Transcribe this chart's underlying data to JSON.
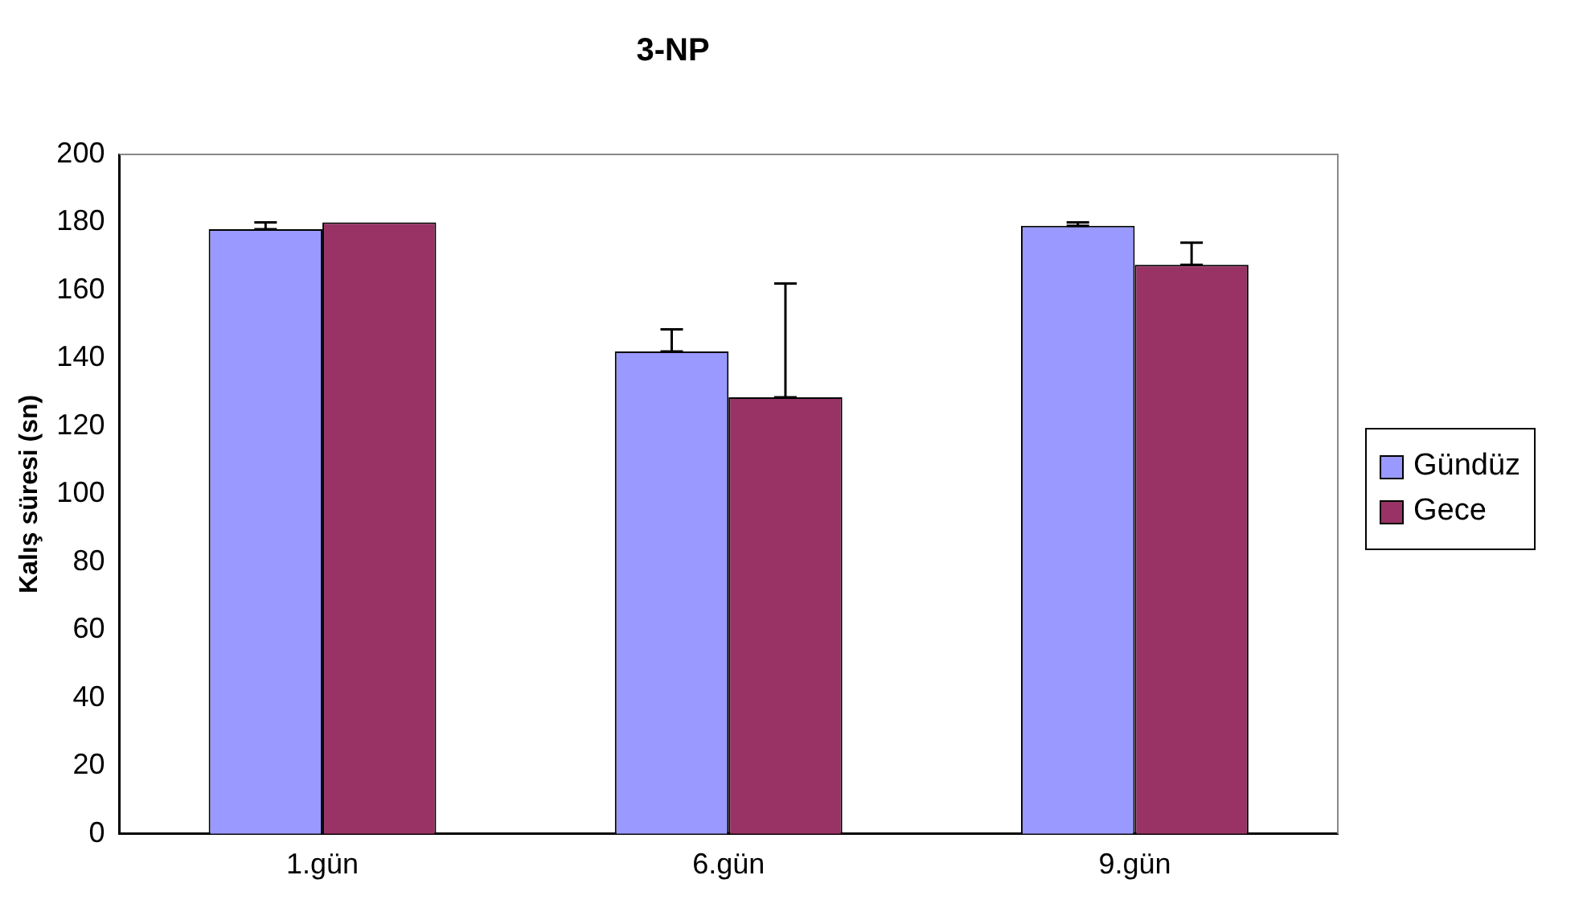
{
  "chart_data": {
    "type": "bar",
    "title": "3-NP",
    "ylabel": "Kalış süresi (sn)",
    "categories": [
      "1.gün",
      "6.gün",
      "9.gün"
    ],
    "series": [
      {
        "name": "Gündüz",
        "color": "#9999ff",
        "values": [
          178,
          142,
          179
        ],
        "errors": [
          [
            178,
            180
          ],
          [
            142,
            148.5
          ],
          [
            179,
            180
          ]
        ]
      },
      {
        "name": "Gece",
        "color": "#993366",
        "values": [
          180,
          128.5,
          167.5
        ],
        "errors": [
          null,
          [
            128.5,
            162
          ],
          [
            167.5,
            174
          ]
        ]
      }
    ],
    "ylim": [
      0,
      200
    ],
    "yticks": [
      0,
      20,
      40,
      60,
      80,
      100,
      120,
      140,
      160,
      180,
      200
    ],
    "grid": false,
    "legend": "right"
  }
}
